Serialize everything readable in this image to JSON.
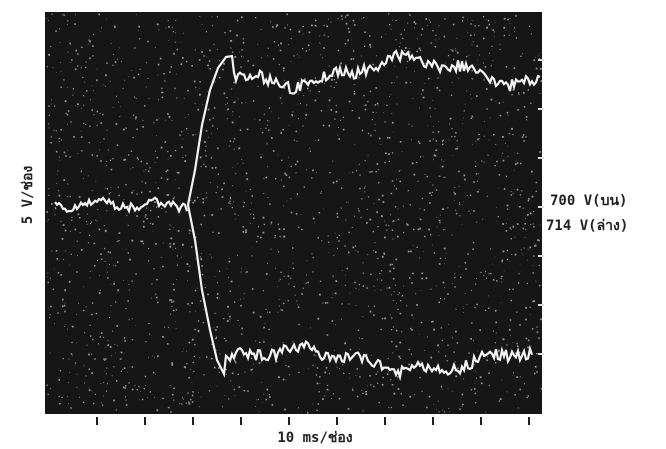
{
  "vertical_scale": "5 V/ช่อง",
  "upper_voltage": "700 V(บน)",
  "lower_voltage": "714 V(ล่าง)",
  "time_scale": "10 ms/ช่อง"
}
